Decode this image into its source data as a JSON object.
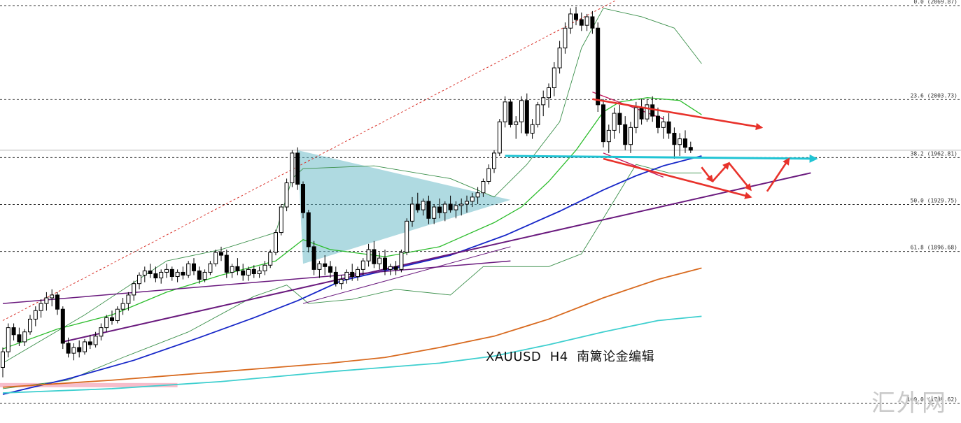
{
  "chart_data": {
    "type": "candlestick",
    "title": "XAUUSD  H4  南篱论金编辑",
    "symbol": "XAUUSD",
    "timeframe": "H4",
    "ylim": [
      1783,
      2080
    ],
    "fib_levels": [
      {
        "label": "0.0 (2069.87)",
        "ratio": 0.0,
        "price": 2069.87
      },
      {
        "label": "23.6 (2003.73)",
        "ratio": 23.6,
        "price": 2003.73
      },
      {
        "label": "38.2 (1962.81)",
        "ratio": 38.2,
        "price": 1962.81
      },
      {
        "label": "50.0 (1929.75)",
        "ratio": 50.0,
        "price": 1929.75
      },
      {
        "label": "61.8 (1896.68)",
        "ratio": 61.8,
        "price": 1896.68
      },
      {
        "label": "100.0 (1789.62)",
        "ratio": 100.0,
        "price": 1789.62
      }
    ],
    "current_price": 1968,
    "candles": [
      [
        1815,
        1829,
        1808,
        1826
      ],
      [
        1826,
        1846,
        1822,
        1843
      ],
      [
        1843,
        1846,
        1834,
        1838
      ],
      [
        1838,
        1843,
        1830,
        1833
      ],
      [
        1833,
        1842,
        1830,
        1840
      ],
      [
        1840,
        1852,
        1838,
        1849
      ],
      [
        1849,
        1858,
        1844,
        1855
      ],
      [
        1855,
        1863,
        1850,
        1860
      ],
      [
        1860,
        1868,
        1855,
        1864
      ],
      [
        1864,
        1870,
        1858,
        1866
      ],
      [
        1866,
        1868,
        1852,
        1856
      ],
      [
        1856,
        1858,
        1828,
        1832
      ],
      [
        1832,
        1836,
        1822,
        1825
      ],
      [
        1825,
        1832,
        1820,
        1829
      ],
      [
        1829,
        1834,
        1822,
        1826
      ],
      [
        1826,
        1835,
        1824,
        1833
      ],
      [
        1833,
        1838,
        1828,
        1831
      ],
      [
        1831,
        1840,
        1829,
        1837
      ],
      [
        1837,
        1846,
        1834,
        1843
      ],
      [
        1843,
        1852,
        1840,
        1850
      ],
      [
        1850,
        1855,
        1845,
        1848
      ],
      [
        1848,
        1858,
        1846,
        1856
      ],
      [
        1856,
        1864,
        1852,
        1860
      ],
      [
        1860,
        1868,
        1855,
        1866
      ],
      [
        1866,
        1876,
        1862,
        1874
      ],
      [
        1874,
        1882,
        1870,
        1880
      ],
      [
        1880,
        1886,
        1875,
        1883
      ],
      [
        1883,
        1888,
        1878,
        1881
      ],
      [
        1881,
        1886,
        1875,
        1878
      ],
      [
        1878,
        1884,
        1874,
        1882
      ],
      [
        1882,
        1888,
        1878,
        1884
      ],
      [
        1884,
        1886,
        1876,
        1879
      ],
      [
        1879,
        1884,
        1875,
        1882
      ],
      [
        1882,
        1886,
        1877,
        1880
      ],
      [
        1880,
        1890,
        1878,
        1888
      ],
      [
        1888,
        1892,
        1880,
        1883
      ],
      [
        1883,
        1886,
        1874,
        1877
      ],
      [
        1877,
        1884,
        1875,
        1882
      ],
      [
        1882,
        1890,
        1880,
        1888
      ],
      [
        1888,
        1898,
        1886,
        1896
      ],
      [
        1896,
        1900,
        1890,
        1894
      ],
      [
        1894,
        1898,
        1878,
        1882
      ],
      [
        1882,
        1888,
        1878,
        1886
      ],
      [
        1886,
        1892,
        1880,
        1883
      ],
      [
        1883,
        1888,
        1876,
        1880
      ],
      [
        1880,
        1886,
        1876,
        1884
      ],
      [
        1884,
        1887,
        1878,
        1881
      ],
      [
        1881,
        1886,
        1878,
        1883
      ],
      [
        1883,
        1890,
        1880,
        1887
      ],
      [
        1887,
        1898,
        1885,
        1896
      ],
      [
        1896,
        1912,
        1894,
        1910
      ],
      [
        1910,
        1930,
        1908,
        1928
      ],
      [
        1928,
        1948,
        1925,
        1945
      ],
      [
        1945,
        1968,
        1942,
        1966
      ],
      [
        1966,
        1970,
        1940,
        1944
      ],
      [
        1944,
        1946,
        1920,
        1924
      ],
      [
        1924,
        1926,
        1896,
        1900
      ],
      [
        1900,
        1904,
        1880,
        1884
      ],
      [
        1884,
        1890,
        1878,
        1888
      ],
      [
        1888,
        1894,
        1880,
        1886
      ],
      [
        1886,
        1890,
        1878,
        1882
      ],
      [
        1882,
        1886,
        1872,
        1874
      ],
      [
        1874,
        1880,
        1870,
        1877
      ],
      [
        1877,
        1884,
        1874,
        1882
      ],
      [
        1882,
        1888,
        1876,
        1879
      ],
      [
        1879,
        1886,
        1876,
        1884
      ],
      [
        1884,
        1892,
        1880,
        1890
      ],
      [
        1890,
        1902,
        1886,
        1898
      ],
      [
        1898,
        1904,
        1885,
        1888
      ],
      [
        1888,
        1896,
        1884,
        1892
      ],
      [
        1892,
        1898,
        1880,
        1884
      ],
      [
        1884,
        1888,
        1880,
        1886
      ],
      [
        1886,
        1890,
        1880,
        1884
      ],
      [
        1884,
        1898,
        1882,
        1896
      ],
      [
        1896,
        1920,
        1894,
        1918
      ],
      [
        1918,
        1935,
        1914,
        1930
      ],
      [
        1930,
        1938,
        1924,
        1926
      ],
      [
        1926,
        1934,
        1922,
        1932
      ],
      [
        1932,
        1936,
        1916,
        1920
      ],
      [
        1920,
        1930,
        1916,
        1928
      ],
      [
        1928,
        1934,
        1920,
        1924
      ],
      [
        1924,
        1932,
        1918,
        1930
      ],
      [
        1930,
        1936,
        1924,
        1926
      ],
      [
        1926,
        1932,
        1920,
        1929
      ],
      [
        1929,
        1934,
        1922,
        1930
      ],
      [
        1930,
        1936,
        1924,
        1932
      ],
      [
        1932,
        1938,
        1928,
        1935
      ],
      [
        1935,
        1942,
        1930,
        1938
      ],
      [
        1938,
        1948,
        1935,
        1946
      ],
      [
        1946,
        1958,
        1944,
        1955
      ],
      [
        1955,
        1968,
        1952,
        1966
      ],
      [
        1966,
        1990,
        1964,
        1988
      ],
      [
        1988,
        2006,
        1984,
        2002
      ],
      [
        2002,
        2004,
        1984,
        1986
      ],
      [
        1986,
        1992,
        1976,
        1988
      ],
      [
        1988,
        2006,
        1980,
        2003
      ],
      [
        2003,
        2008,
        1978,
        1980
      ],
      [
        1980,
        1990,
        1976,
        1986
      ],
      [
        1986,
        2002,
        1984,
        2000
      ],
      [
        2000,
        2010,
        1992,
        2005
      ],
      [
        2005,
        2015,
        1998,
        2012
      ],
      [
        2012,
        2030,
        2006,
        2026
      ],
      [
        2026,
        2045,
        2022,
        2040
      ],
      [
        2040,
        2058,
        2036,
        2054
      ],
      [
        2054,
        2068,
        2050,
        2064
      ],
      [
        2064,
        2069,
        2056,
        2060
      ],
      [
        2060,
        2065,
        2052,
        2056
      ],
      [
        2056,
        2064,
        2052,
        2062
      ],
      [
        2062,
        2066,
        2050,
        2054
      ],
      [
        2054,
        2058,
        1995,
        2000
      ],
      [
        2000,
        2004,
        1970,
        1974
      ],
      [
        1974,
        1986,
        1966,
        1982
      ],
      [
        1982,
        1998,
        1976,
        1994
      ],
      [
        1994,
        2000,
        1980,
        1986
      ],
      [
        1986,
        1992,
        1968,
        1972
      ],
      [
        1972,
        1988,
        1966,
        1984
      ],
      [
        1984,
        2002,
        1980,
        1998
      ],
      [
        1998,
        2004,
        1986,
        1990
      ],
      [
        1990,
        2004,
        1988,
        2000
      ],
      [
        2000,
        2006,
        1988,
        1992
      ],
      [
        1992,
        1998,
        1980,
        1984
      ],
      [
        1984,
        1992,
        1976,
        1988
      ],
      [
        1988,
        1994,
        1976,
        1980
      ],
      [
        1980,
        1984,
        1962,
        1972
      ],
      [
        1972,
        1980,
        1964,
        1976
      ],
      [
        1976,
        1982,
        1966,
        1970
      ],
      [
        1970,
        1974,
        1966,
        1968
      ]
    ],
    "ma_series": [
      {
        "color": "#2dbd2d",
        "width": 1.3,
        "points": [
          [
            0,
            1828
          ],
          [
            10,
            1842
          ],
          [
            20,
            1852
          ],
          [
            30,
            1868
          ],
          [
            40,
            1880
          ],
          [
            50,
            1890
          ],
          [
            55,
            1905
          ],
          [
            60,
            1898
          ],
          [
            70,
            1893
          ],
          [
            80,
            1900
          ],
          [
            90,
            1917
          ],
          [
            95,
            1928
          ],
          [
            100,
            1946
          ],
          [
            105,
            1968
          ],
          [
            110,
            1995
          ],
          [
            113,
            2002
          ],
          [
            118,
            2005
          ],
          [
            124,
            2003
          ],
          [
            128,
            1993
          ]
        ]
      },
      {
        "color": "#1727c8",
        "width": 1.8,
        "points": [
          [
            0,
            1796
          ],
          [
            12,
            1807
          ],
          [
            24,
            1820
          ],
          [
            36,
            1836
          ],
          [
            46,
            1850
          ],
          [
            54,
            1862
          ],
          [
            62,
            1876
          ],
          [
            72,
            1885
          ],
          [
            82,
            1894
          ],
          [
            92,
            1908
          ],
          [
            102,
            1925
          ],
          [
            110,
            1940
          ],
          [
            116,
            1950
          ],
          [
            121,
            1957
          ],
          [
            126,
            1962
          ],
          [
            128,
            1964
          ]
        ]
      },
      {
        "color": "#d86a1f",
        "width": 1.8,
        "points": [
          [
            0,
            1801
          ],
          [
            20,
            1806
          ],
          [
            40,
            1812
          ],
          [
            60,
            1818
          ],
          [
            70,
            1822
          ],
          [
            80,
            1829
          ],
          [
            90,
            1837
          ],
          [
            100,
            1849
          ],
          [
            110,
            1864
          ],
          [
            120,
            1877
          ],
          [
            128,
            1885
          ]
        ]
      },
      {
        "color": "#3ecfcf",
        "width": 1.8,
        "points": [
          [
            0,
            1797
          ],
          [
            20,
            1800
          ],
          [
            40,
            1805
          ],
          [
            60,
            1812
          ],
          [
            70,
            1815
          ],
          [
            80,
            1818
          ],
          [
            90,
            1823
          ],
          [
            100,
            1831
          ],
          [
            110,
            1840
          ],
          [
            120,
            1848
          ],
          [
            128,
            1851
          ]
        ]
      }
    ],
    "bollinger": [
      {
        "color": "#3a8f4a",
        "points": [
          [
            0,
            1818
          ],
          [
            15,
            1852
          ],
          [
            30,
            1890
          ],
          [
            40,
            1898
          ],
          [
            50,
            1910
          ],
          [
            53,
            1948
          ],
          [
            55,
            1955
          ],
          [
            68,
            1957
          ],
          [
            82,
            1948
          ],
          [
            90,
            1935
          ],
          [
            96,
            1958
          ],
          [
            102,
            1988
          ],
          [
            106,
            2040
          ],
          [
            110,
            2068
          ],
          [
            117,
            2062
          ],
          [
            123,
            2054
          ],
          [
            128,
            2029
          ]
        ]
      },
      {
        "color": "#3a8f4a",
        "points": [
          [
            0,
            1800
          ],
          [
            12,
            1806
          ],
          [
            22,
            1822
          ],
          [
            34,
            1840
          ],
          [
            46,
            1865
          ],
          [
            52,
            1873
          ],
          [
            56,
            1860
          ],
          [
            64,
            1863
          ],
          [
            72,
            1870
          ],
          [
            82,
            1866
          ],
          [
            88,
            1886
          ],
          [
            94,
            1886
          ],
          [
            100,
            1886
          ],
          [
            106,
            1895
          ],
          [
            110,
            1920
          ],
          [
            116,
            1958
          ],
          [
            122,
            1952
          ],
          [
            128,
            1952
          ]
        ]
      }
    ],
    "annotation_lines": [
      {
        "name": "red-dotted-channel-line",
        "color": "#d9332b",
        "dash": "3,3",
        "width": 1,
        "from": [
          0,
          1848
        ],
        "to": [
          114,
          2077
        ]
      },
      {
        "name": "purple-trendline-upper",
        "color": "#6a1a7e",
        "dash": "",
        "width": 1.5,
        "from": [
          0,
          1860
        ],
        "to": [
          93,
          1890
        ]
      },
      {
        "name": "purple-trendline-main",
        "color": "#6a1a7e",
        "dash": "",
        "width": 2,
        "from": [
          11,
          1833
        ],
        "to": [
          148,
          1952
        ]
      },
      {
        "name": "triangle-lower-edge",
        "color": "#6a1a7e",
        "dash": "",
        "width": 1,
        "from": [
          55,
          1860
        ],
        "to": [
          93,
          1900
        ]
      },
      {
        "name": "pink-channel-top",
        "color": "#c2185b",
        "dash": "",
        "width": 1.3,
        "from": [
          108,
          2009
        ],
        "to": [
          121,
          1990
        ]
      },
      {
        "name": "pink-channel-bottom",
        "color": "#c2185b",
        "dash": "",
        "width": 1.3,
        "from": [
          110,
          1966
        ],
        "to": [
          121,
          1949
        ]
      }
    ],
    "triangle_zone": {
      "color": "#5fb6c4",
      "opacity": 0.5,
      "points": [
        [
          54,
          1968
        ],
        [
          93,
          1933
        ],
        [
          55,
          1888
        ]
      ]
    },
    "support_zone": {
      "color": "#f4a7b9",
      "opacity": 0.75,
      "from": [
        0,
        1804
      ],
      "to": [
        32,
        1801
      ]
    },
    "cyan_arrow": {
      "color": "#20c4d4",
      "from": [
        92,
        1964
      ],
      "to": [
        149,
        1962
      ]
    },
    "red_arrows": [
      {
        "from": [
          108,
          2004
        ],
        "to": [
          139,
          1984
        ]
      },
      {
        "from": [
          110,
          1962
        ],
        "to": [
          137,
          1935
        ]
      },
      {
        "from": [
          128,
          1956
        ],
        "to": [
          130,
          1946
        ]
      },
      {
        "from": [
          130,
          1946
        ],
        "to": [
          133,
          1959
        ]
      },
      {
        "from": [
          133,
          1959
        ],
        "to": [
          137,
          1940
        ]
      },
      {
        "from": [
          140,
          1939
        ],
        "to": [
          144,
          1962
        ]
      }
    ]
  },
  "watermark": {
    "text": "汇外网"
  }
}
